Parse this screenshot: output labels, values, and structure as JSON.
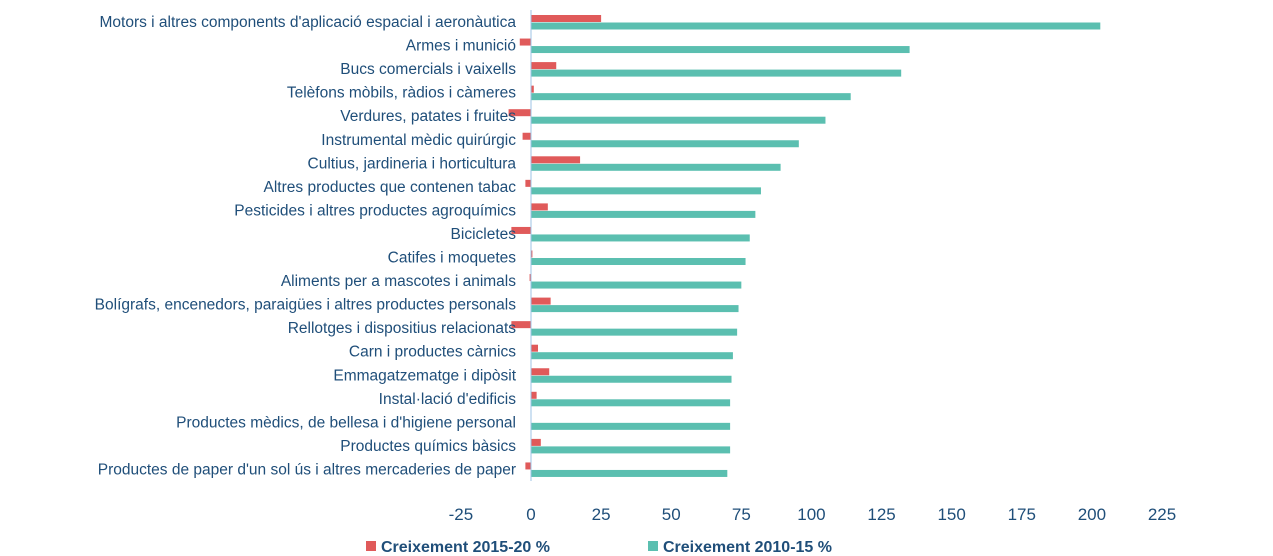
{
  "chart_data": {
    "type": "bar",
    "orientation": "horizontal",
    "categories": [
      "Motors i altres components d'aplicació espacial i aeronàutica",
      "Armes i munició",
      "Bucs comercials i vaixells",
      "Telèfons mòbils, ràdios i càmeres",
      "Verdures, patates i fruites",
      "Instrumental mèdic quirúrgic",
      "Cultius, jardineria i horticultura",
      "Altres productes que contenen tabac",
      "Pesticides i altres productes agroquímics",
      "Bicicletes",
      "Catifes i moquetes",
      "Aliments per a mascotes i animals",
      "Bolígrafs, encenedors, paraigües i altres productes personals",
      "Rellotges i dispositius relacionats",
      "Carn i productes càrnics",
      "Emmagatzematge i dipòsit",
      "Instal·lació d'edificis",
      "Productes mèdics, de bellesa i d'higiene personal",
      "Productes químics bàsics",
      "Productes de paper d'un sol ús i altres mercaderies de paper"
    ],
    "series": [
      {
        "name": "Creixement 2015-20 %",
        "color": "#e05a5a",
        "values": [
          25,
          -4,
          9,
          1,
          -8,
          -3,
          17.5,
          -2,
          6,
          -7,
          0.5,
          -0.5,
          7,
          -7,
          2.5,
          6.5,
          2,
          0,
          3.5,
          -2
        ]
      },
      {
        "name": "Creixement 2010-15 %",
        "color": "#5bbfb0",
        "values": [
          203,
          135,
          132,
          114,
          105,
          95.5,
          89,
          82,
          80,
          78,
          76.5,
          75,
          74,
          73.5,
          72,
          71.5,
          71,
          71,
          71,
          70
        ]
      }
    ],
    "xlim": [
      -25,
      225
    ],
    "xticks": [
      "-25",
      "0",
      "25",
      "50",
      "75",
      "100",
      "125",
      "150",
      "175",
      "200",
      "225"
    ],
    "grid": false,
    "legend_position": "bottom-center"
  }
}
